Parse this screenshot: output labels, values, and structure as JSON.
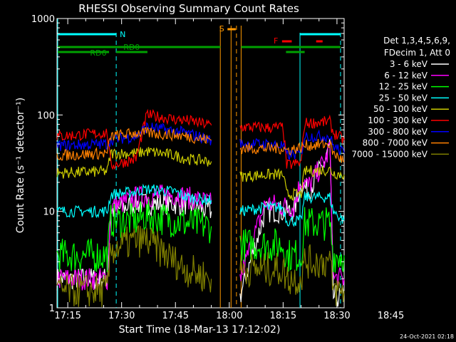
{
  "chart_data": {
    "type": "line",
    "title": "RHESSI Observing Summary Count Rates",
    "xlabel": "Start Time (18-Mar-13 17:12:02)",
    "ylabel": "Count Rate (s⁻¹ detector⁻¹)",
    "x_ticks": [
      "17:15",
      "17:30",
      "17:45",
      "18:00",
      "18:15",
      "18:30",
      "18:45"
    ],
    "x_range_minutes": [
      12,
      92
    ],
    "y_scale": "log",
    "ylim": [
      1,
      1000
    ],
    "y_ticks": [
      "1",
      "10",
      "100",
      "1000"
    ],
    "detector_info": [
      "Det 1,3,4,5,6,9,",
      "FDecim 1, Att 0"
    ],
    "footer_timestamp": "24-Oct-2021 02:18",
    "bars": [
      {
        "label": "RD0",
        "color": "#00a000"
      },
      {
        "label": "RD6",
        "color": "#00a000"
      },
      {
        "label": "S",
        "color": "#ff9900"
      },
      {
        "label": "F",
        "color": "#ff0000"
      },
      {
        "label": "N",
        "color": "#00ffff"
      }
    ],
    "series": [
      {
        "name": "3 - 6 keV",
        "color": "#ffffff",
        "points": [
          [
            12,
            2
          ],
          [
            26,
            2
          ],
          [
            27,
            10
          ],
          [
            34,
            12
          ],
          [
            45,
            12
          ],
          [
            48,
            12
          ],
          [
            55,
            10
          ],
          [
            63,
            null
          ],
          [
            63,
            1.3
          ],
          [
            70,
            10
          ],
          [
            78,
            10
          ],
          [
            80,
            20
          ],
          [
            82,
            16
          ],
          [
            87,
            35
          ],
          [
            88,
            50
          ],
          [
            89,
            1.3
          ],
          [
            92,
            1.3
          ]
        ]
      },
      {
        "name": "6 - 12 keV",
        "color": "#ff00ff",
        "points": [
          [
            12,
            2
          ],
          [
            26,
            2
          ],
          [
            27,
            11
          ],
          [
            34,
            14
          ],
          [
            45,
            15
          ],
          [
            48,
            14
          ],
          [
            55,
            12
          ],
          [
            63,
            null
          ],
          [
            63,
            2
          ],
          [
            70,
            12
          ],
          [
            78,
            11
          ],
          [
            80,
            22
          ],
          [
            82,
            18
          ],
          [
            87,
            35
          ],
          [
            88,
            50
          ],
          [
            89,
            2
          ],
          [
            92,
            2
          ]
        ]
      },
      {
        "name": "12 - 25 keV",
        "color": "#00ff00",
        "points": [
          [
            12,
            3.5
          ],
          [
            26,
            3.5
          ],
          [
            27,
            8
          ],
          [
            34,
            8
          ],
          [
            37,
            9
          ],
          [
            45,
            8
          ],
          [
            48,
            7.5
          ],
          [
            55,
            7
          ],
          [
            63,
            null
          ],
          [
            63,
            4.5
          ],
          [
            70,
            4.5
          ],
          [
            75,
            4.5
          ],
          [
            76,
            3.5
          ],
          [
            80,
            3.5
          ],
          [
            81,
            7.5
          ],
          [
            88,
            7.5
          ],
          [
            89,
            3.5
          ],
          [
            92,
            3.5
          ]
        ]
      },
      {
        "name": "25 - 50 keV",
        "color": "#00ffff",
        "points": [
          [
            12,
            10
          ],
          [
            26,
            10
          ],
          [
            27,
            15
          ],
          [
            34,
            16
          ],
          [
            37,
            17
          ],
          [
            45,
            16
          ],
          [
            48,
            14
          ],
          [
            55,
            13
          ],
          [
            63,
            null
          ],
          [
            63,
            10
          ],
          [
            70,
            11
          ],
          [
            75,
            11
          ],
          [
            76,
            8
          ],
          [
            80,
            8
          ],
          [
            81,
            14
          ],
          [
            88,
            14
          ],
          [
            89,
            10
          ],
          [
            92,
            8
          ]
        ]
      },
      {
        "name": "50 - 100 keV",
        "color": "#cccc00",
        "points": [
          [
            12,
            25
          ],
          [
            26,
            26
          ],
          [
            27,
            40
          ],
          [
            34,
            40
          ],
          [
            37,
            42
          ],
          [
            45,
            38
          ],
          [
            48,
            35
          ],
          [
            55,
            33
          ],
          [
            63,
            null
          ],
          [
            63,
            23
          ],
          [
            70,
            24
          ],
          [
            75,
            24
          ],
          [
            76,
            15
          ],
          [
            80,
            15
          ],
          [
            81,
            26
          ],
          [
            88,
            27
          ],
          [
            89,
            25
          ],
          [
            92,
            24
          ]
        ]
      },
      {
        "name": "100 - 300 keV",
        "color": "#ff0000",
        "points": [
          [
            12,
            60
          ],
          [
            26,
            65
          ],
          [
            27,
            30
          ],
          [
            34,
            35
          ],
          [
            37,
            100
          ],
          [
            45,
            90
          ],
          [
            48,
            88
          ],
          [
            55,
            78
          ],
          [
            63,
            null
          ],
          [
            63,
            75
          ],
          [
            70,
            74
          ],
          [
            75,
            74
          ],
          [
            76,
            30
          ],
          [
            80,
            32
          ],
          [
            81,
            82
          ],
          [
            88,
            85
          ],
          [
            89,
            65
          ],
          [
            92,
            55
          ]
        ]
      },
      {
        "name": "300 - 800 keV",
        "color": "#0000ff",
        "points": [
          [
            12,
            48
          ],
          [
            26,
            50
          ],
          [
            27,
            55
          ],
          [
            34,
            60
          ],
          [
            37,
            75
          ],
          [
            45,
            68
          ],
          [
            48,
            65
          ],
          [
            55,
            55
          ],
          [
            63,
            null
          ],
          [
            63,
            50
          ],
          [
            70,
            50
          ],
          [
            75,
            48
          ],
          [
            76,
            38
          ],
          [
            80,
            40
          ],
          [
            81,
            60
          ],
          [
            88,
            60
          ],
          [
            89,
            48
          ],
          [
            92,
            40
          ]
        ]
      },
      {
        "name": "800 - 7000 keV",
        "color": "#ff8000",
        "points": [
          [
            12,
            38
          ],
          [
            26,
            40
          ],
          [
            27,
            60
          ],
          [
            34,
            65
          ],
          [
            37,
            65
          ],
          [
            45,
            62
          ],
          [
            48,
            60
          ],
          [
            55,
            55
          ],
          [
            63,
            null
          ],
          [
            63,
            45
          ],
          [
            70,
            45
          ],
          [
            75,
            45
          ],
          [
            76,
            43
          ],
          [
            80,
            46
          ],
          [
            81,
            48
          ],
          [
            88,
            50
          ],
          [
            89,
            40
          ],
          [
            92,
            33
          ]
        ]
      },
      {
        "name": "7000 - 15000 keV",
        "color": "#808000",
        "points": [
          [
            12,
            1.5
          ],
          [
            26,
            1.5
          ],
          [
            27,
            4
          ],
          [
            34,
            5
          ],
          [
            37,
            5
          ],
          [
            45,
            3
          ],
          [
            48,
            2.5
          ],
          [
            55,
            2
          ],
          [
            63,
            null
          ],
          [
            63,
            2.5
          ],
          [
            70,
            2.5
          ],
          [
            75,
            2.5
          ],
          [
            76,
            2
          ],
          [
            80,
            2
          ],
          [
            81,
            3
          ],
          [
            88,
            3
          ],
          [
            89,
            1.5
          ],
          [
            92,
            1.5
          ]
        ]
      }
    ]
  }
}
